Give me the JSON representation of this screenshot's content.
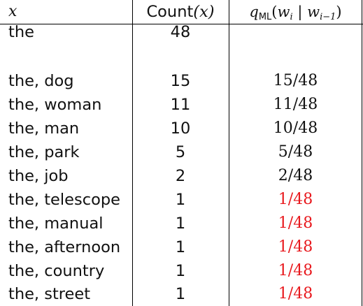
{
  "header": {
    "col1": "x",
    "col2_text": "Count",
    "col2_open": "(",
    "col2_var": "x",
    "col2_close": ")",
    "col3_q": "q",
    "col3_sub": "ML",
    "col3_open": "(",
    "col3_w1": "w",
    "col3_sub1": "i",
    "col3_bar": " | ",
    "col3_w2": "w",
    "col3_sub2": "i−1",
    "col3_close": ")"
  },
  "rows": [
    {
      "x": "the",
      "count": "48",
      "q": ""
    },
    {
      "x": "",
      "count": "",
      "q": ""
    },
    {
      "x": "the, dog",
      "count": "15",
      "q": "15/48"
    },
    {
      "x": "the, woman",
      "count": "11",
      "q": "11/48"
    },
    {
      "x": "the, man",
      "count": "10",
      "q": "10/48"
    },
    {
      "x": "the, park",
      "count": "5",
      "q": "5/48"
    },
    {
      "x": "the, job",
      "count": "2",
      "q": "2/48"
    },
    {
      "x": "the, telescope",
      "count": "1",
      "q": "1/48"
    },
    {
      "x": "the, manual",
      "count": "1",
      "q": "1/48"
    },
    {
      "x": "the, afternoon",
      "count": "1",
      "q": "1/48"
    },
    {
      "x": "the, country",
      "count": "1",
      "q": "1/48"
    },
    {
      "x": "the, street",
      "count": "1",
      "q": "1/48"
    }
  ],
  "highlight_color": "#e8191e"
}
